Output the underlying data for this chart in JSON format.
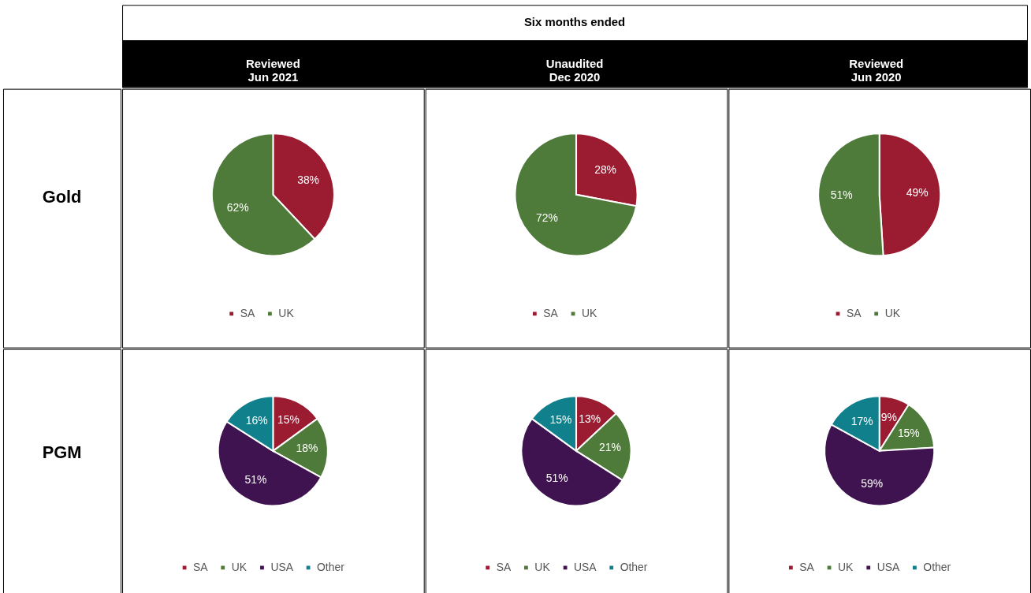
{
  "chart_data": [
    {
      "type": "pie",
      "title": "Reviewed\nJun 2021",
      "ylabel": "Gold",
      "annotations": [
        "Six months ended"
      ],
      "categories": [
        "SA",
        "UK"
      ],
      "values": [
        38,
        62
      ],
      "colors": [
        "#9b1b30",
        "#4e7a3a"
      ],
      "value_labels": [
        "38%",
        "62%"
      ],
      "legend": "bottom"
    },
    {
      "type": "pie",
      "title": "Unaudited\nDec 2020",
      "categories": [
        "SA",
        "UK"
      ],
      "values": [
        28,
        72
      ],
      "colors": [
        "#9b1b30",
        "#4e7a3a"
      ],
      "value_labels": [
        "28%",
        "72%"
      ],
      "legend": "bottom"
    },
    {
      "type": "pie",
      "title": "Reviewed\nJun 2020",
      "categories": [
        "SA",
        "UK"
      ],
      "values": [
        49,
        51
      ],
      "colors": [
        "#9b1b30",
        "#4e7a3a"
      ],
      "value_labels": [
        "49%",
        "51%"
      ],
      "legend": "bottom"
    },
    {
      "type": "pie",
      "ylabel": "PGM",
      "categories": [
        "SA",
        "UK",
        "USA",
        "Other"
      ],
      "values": [
        15,
        18,
        51,
        16
      ],
      "colors": [
        "#9b1b30",
        "#4e7a3a",
        "#3f1350",
        "#10808c"
      ],
      "value_labels": [
        "15%",
        "18%",
        "51%",
        "16%"
      ],
      "legend": "bottom"
    },
    {
      "type": "pie",
      "categories": [
        "SA",
        "UK",
        "USA",
        "Other"
      ],
      "values": [
        13,
        21,
        51,
        15
      ],
      "colors": [
        "#9b1b30",
        "#4e7a3a",
        "#3f1350",
        "#10808c"
      ],
      "value_labels": [
        "13%",
        "21%",
        "51%",
        "15%"
      ],
      "legend": "bottom"
    },
    {
      "type": "pie",
      "categories": [
        "SA",
        "UK",
        "USA",
        "Other"
      ],
      "values": [
        9,
        15,
        59,
        17
      ],
      "colors": [
        "#9b1b30",
        "#4e7a3a",
        "#3f1350",
        "#10808c"
      ],
      "value_labels": [
        "9%",
        "15%",
        "59%",
        "17%"
      ],
      "legend": "bottom"
    }
  ]
}
